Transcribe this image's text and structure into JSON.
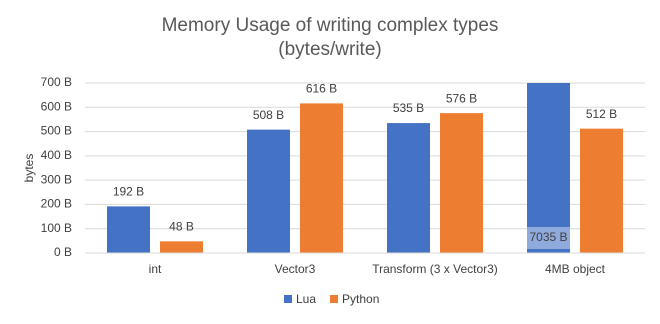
{
  "chart_data": {
    "type": "bar",
    "title": "Memory Usage of writing complex types",
    "subtitle": "(bytes/write)",
    "ylabel": "bytes",
    "categories": [
      "int",
      "Vector3",
      "Transform (3 x Vector3)",
      "4MB object"
    ],
    "series": [
      {
        "name": "Lua",
        "color": "#4472c4",
        "values": [
          192,
          508,
          535,
          7035
        ],
        "value_labels": [
          "192 B",
          "508 B",
          "535 B",
          "7035 B"
        ]
      },
      {
        "name": "Python",
        "color": "#ed7d31",
        "values": [
          48,
          616,
          576,
          512
        ],
        "value_labels": [
          "48 B",
          "616 B",
          "576 B",
          "512 B"
        ]
      }
    ],
    "ylim": [
      0,
      700
    ],
    "yticks": [
      {
        "value": 0,
        "label": "0 B"
      },
      {
        "value": 100,
        "label": "100 B"
      },
      {
        "value": 200,
        "label": "200 B"
      },
      {
        "value": 300,
        "label": "300 B"
      },
      {
        "value": 400,
        "label": "400 B"
      },
      {
        "value": 500,
        "label": "500 B"
      },
      {
        "value": 600,
        "label": "600 B"
      },
      {
        "value": 700,
        "label": "700 B"
      }
    ],
    "grid": true,
    "legend": "bottom"
  }
}
